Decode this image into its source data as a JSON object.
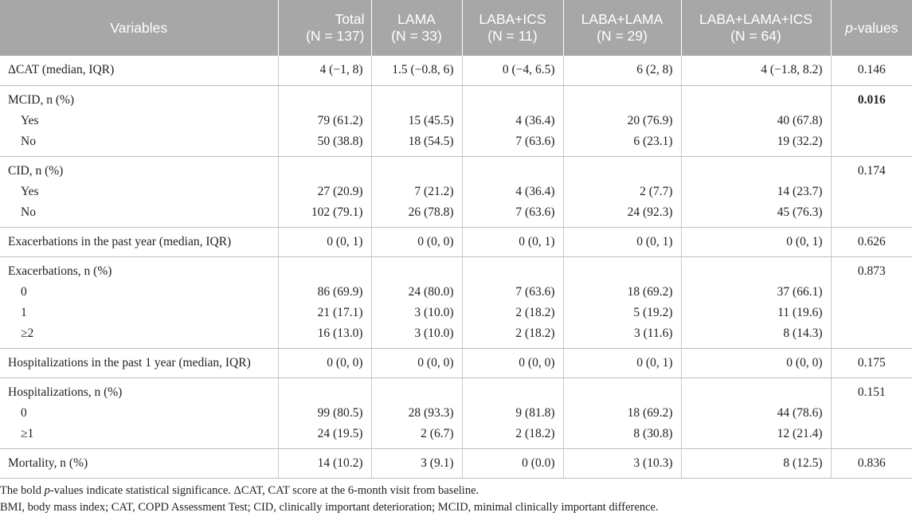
{
  "header": {
    "variables": "Variables",
    "total": "Total",
    "total_n": "(N = 137)",
    "lama": "LAMA",
    "lama_n": "(N = 33)",
    "laba_ics": "LABA+ICS",
    "laba_ics_n": "(N = 11)",
    "laba_lama": "LABA+LAMA",
    "laba_lama_n": "(N = 29)",
    "triple": "LABA+LAMA+ICS",
    "triple_n": "(N = 64)",
    "p_prefix": "p",
    "p_suffix": "-values"
  },
  "rows": [
    {
      "label": "ΔCAT (median, IQR)",
      "sub": [],
      "values": [
        [
          "4 (−1, 8)"
        ],
        [
          "1.5 (−0.8, 6)"
        ],
        [
          "0 (−4, 6.5)"
        ],
        [
          "6 (2, 8)"
        ],
        [
          "4 (−1.8, 8.2)"
        ]
      ],
      "p": "0.146",
      "p_bold": false
    },
    {
      "label": "MCID, n (%)",
      "sub": [
        "Yes",
        "No"
      ],
      "values": [
        [
          "79 (61.2)",
          "50 (38.8)"
        ],
        [
          "15 (45.5)",
          "18 (54.5)"
        ],
        [
          "4 (36.4)",
          "7 (63.6)"
        ],
        [
          "20 (76.9)",
          "6 (23.1)"
        ],
        [
          "40 (67.8)",
          "19 (32.2)"
        ]
      ],
      "p": "0.016",
      "p_bold": true
    },
    {
      "label": "CID, n (%)",
      "sub": [
        "Yes",
        "No"
      ],
      "values": [
        [
          "27 (20.9)",
          "102 (79.1)"
        ],
        [
          "7 (21.2)",
          "26 (78.8)"
        ],
        [
          "4 (36.4)",
          "7 (63.6)"
        ],
        [
          "2 (7.7)",
          "24 (92.3)"
        ],
        [
          "14 (23.7)",
          "45 (76.3)"
        ]
      ],
      "p": "0.174",
      "p_bold": false
    },
    {
      "label": "Exacerbations in the past year (median, IQR)",
      "sub": [],
      "values": [
        [
          "0 (0, 1)"
        ],
        [
          "0 (0, 0)"
        ],
        [
          "0 (0, 1)"
        ],
        [
          "0 (0, 1)"
        ],
        [
          "0 (0, 1)"
        ]
      ],
      "p": "0.626",
      "p_bold": false
    },
    {
      "label": "Exacerbations, n (%)",
      "sub": [
        "0",
        "1",
        "≥2"
      ],
      "values": [
        [
          "86 (69.9)",
          "21 (17.1)",
          "16 (13.0)"
        ],
        [
          "24 (80.0)",
          "3 (10.0)",
          "3 (10.0)"
        ],
        [
          "7 (63.6)",
          "2 (18.2)",
          "2 (18.2)"
        ],
        [
          "18 (69.2)",
          "5 (19.2)",
          "3 (11.6)"
        ],
        [
          "37 (66.1)",
          "11 (19.6)",
          "8 (14.3)"
        ]
      ],
      "p": "0.873",
      "p_bold": false
    },
    {
      "label": "Hospitalizations in the past 1 year (median, IQR)",
      "sub": [],
      "values": [
        [
          "0 (0, 0)"
        ],
        [
          "0 (0, 0)"
        ],
        [
          "0 (0, 0)"
        ],
        [
          "0 (0, 1)"
        ],
        [
          "0 (0, 0)"
        ]
      ],
      "p": "0.175",
      "p_bold": false
    },
    {
      "label": "Hospitalizations, n (%)",
      "sub": [
        "0",
        "≥1"
      ],
      "values": [
        [
          "99 (80.5)",
          "24 (19.5)"
        ],
        [
          "28 (93.3)",
          "2 (6.7)"
        ],
        [
          "9 (81.8)",
          "2 (18.2)"
        ],
        [
          "18 (69.2)",
          "8 (30.8)"
        ],
        [
          "44 (78.6)",
          "12 (21.4)"
        ]
      ],
      "p": "0.151",
      "p_bold": false
    },
    {
      "label": "Mortality, n (%)",
      "sub": [],
      "values": [
        [
          "14 (10.2)"
        ],
        [
          "3 (9.1)"
        ],
        [
          "0 (0.0)"
        ],
        [
          "3 (10.3)"
        ],
        [
          "8 (12.5)"
        ]
      ],
      "p": "0.836",
      "p_bold": false
    }
  ],
  "footnotes": {
    "line1_pre": "The bold ",
    "line1_p": "p",
    "line1_post": "-values indicate statistical significance. ΔCAT, CAT score at the 6-month visit from baseline.",
    "line2": "BMI, body mass index; CAT, COPD Assessment Test; CID, clinically important deterioration; MCID, minimal clinically important difference."
  }
}
